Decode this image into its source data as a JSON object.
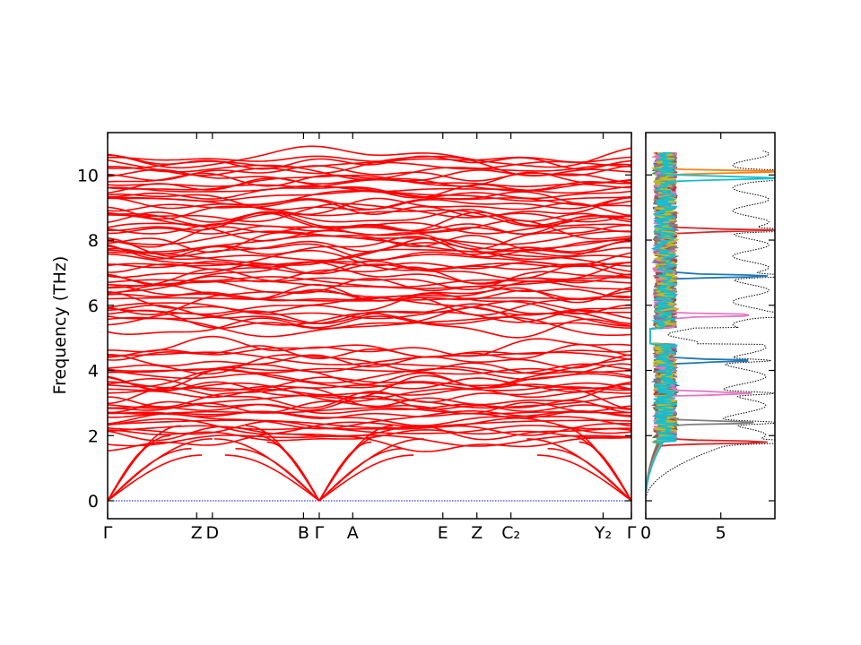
{
  "chart_data": [
    {
      "type": "line",
      "title": "",
      "xlabel": "",
      "ylabel": "Frequency (THz)",
      "ylim": [
        -0.55,
        11.3
      ],
      "grid": false,
      "legend": "none",
      "y_ticks": [
        0,
        2,
        4,
        6,
        8,
        10
      ],
      "segments": [
        {
          "from": "Γ",
          "to": "Z"
        },
        {
          "from": "D",
          "to": "B"
        },
        {
          "from": "Γ",
          "to": "Y₂"
        }
      ],
      "x_ticks": [
        {
          "label": "Γ",
          "x": 0.0
        },
        {
          "label": "Z",
          "x": 0.17
        },
        {
          "label": "D",
          "x": 0.2
        },
        {
          "label": "B",
          "x": 0.374
        },
        {
          "label": "Γ",
          "x": 0.404
        },
        {
          "label": "A",
          "x": 0.468
        },
        {
          "label": "E",
          "x": 0.64
        },
        {
          "label": "Z",
          "x": 0.705
        },
        {
          "label": "C₂",
          "x": 0.77
        },
        {
          "label": "Y₂",
          "x": 0.946
        },
        {
          "label": "Γ",
          "x": 1.0
        }
      ],
      "series": [
        {
          "color": "#ff0000",
          "values": "phonon branches: many near-flat bands between ~1.8 and 10.6 THz, band gap ~4.8-5.3 THz, acoustic branches reaching 0 THz at Γ points"
        },
        {
          "color": "#0000ff",
          "values": "zero-frequency reference (dotted) at 0 THz"
        }
      ],
      "acoustic_zero_points": [
        0.0,
        0.404,
        1.0
      ],
      "band_max_near": 10.8
    },
    {
      "type": "line",
      "title": "",
      "xlabel": "",
      "ylabel": "",
      "xlim": [
        0,
        8.6
      ],
      "ylim": [
        -0.55,
        11.3
      ],
      "x_ticks": [
        0,
        5
      ],
      "grid": false,
      "legend": "none",
      "total_dos": {
        "color": "#000000",
        "style": "dotted"
      },
      "peaks": [
        {
          "freq": 1.8,
          "value": 7.6,
          "color": "#d62728"
        },
        {
          "freq": 2.4,
          "value": 6.2,
          "color": "#7f7f7f"
        },
        {
          "freq": 3.3,
          "value": 5.8,
          "color": "#e377c2"
        },
        {
          "freq": 4.3,
          "value": 5.5,
          "color": "#1f77b4"
        },
        {
          "freq": 5.7,
          "value": 6.0,
          "color": "#e377c2"
        },
        {
          "freq": 6.9,
          "value": 6.5,
          "color": "#1f77b4"
        },
        {
          "freq": 8.3,
          "value": 6.8,
          "color": "#d62728"
        },
        {
          "freq": 9.9,
          "value": 8.0,
          "color": "#17becf"
        },
        {
          "freq": 10.1,
          "value": 7.6,
          "color": "#ff7f0e"
        }
      ],
      "series_colors": [
        "#1f77b4",
        "#ff7f0e",
        "#2ca02c",
        "#d62728",
        "#9467bd",
        "#8c564b",
        "#e377c2",
        "#7f7f7f",
        "#bcbd22",
        "#17becf"
      ]
    }
  ]
}
